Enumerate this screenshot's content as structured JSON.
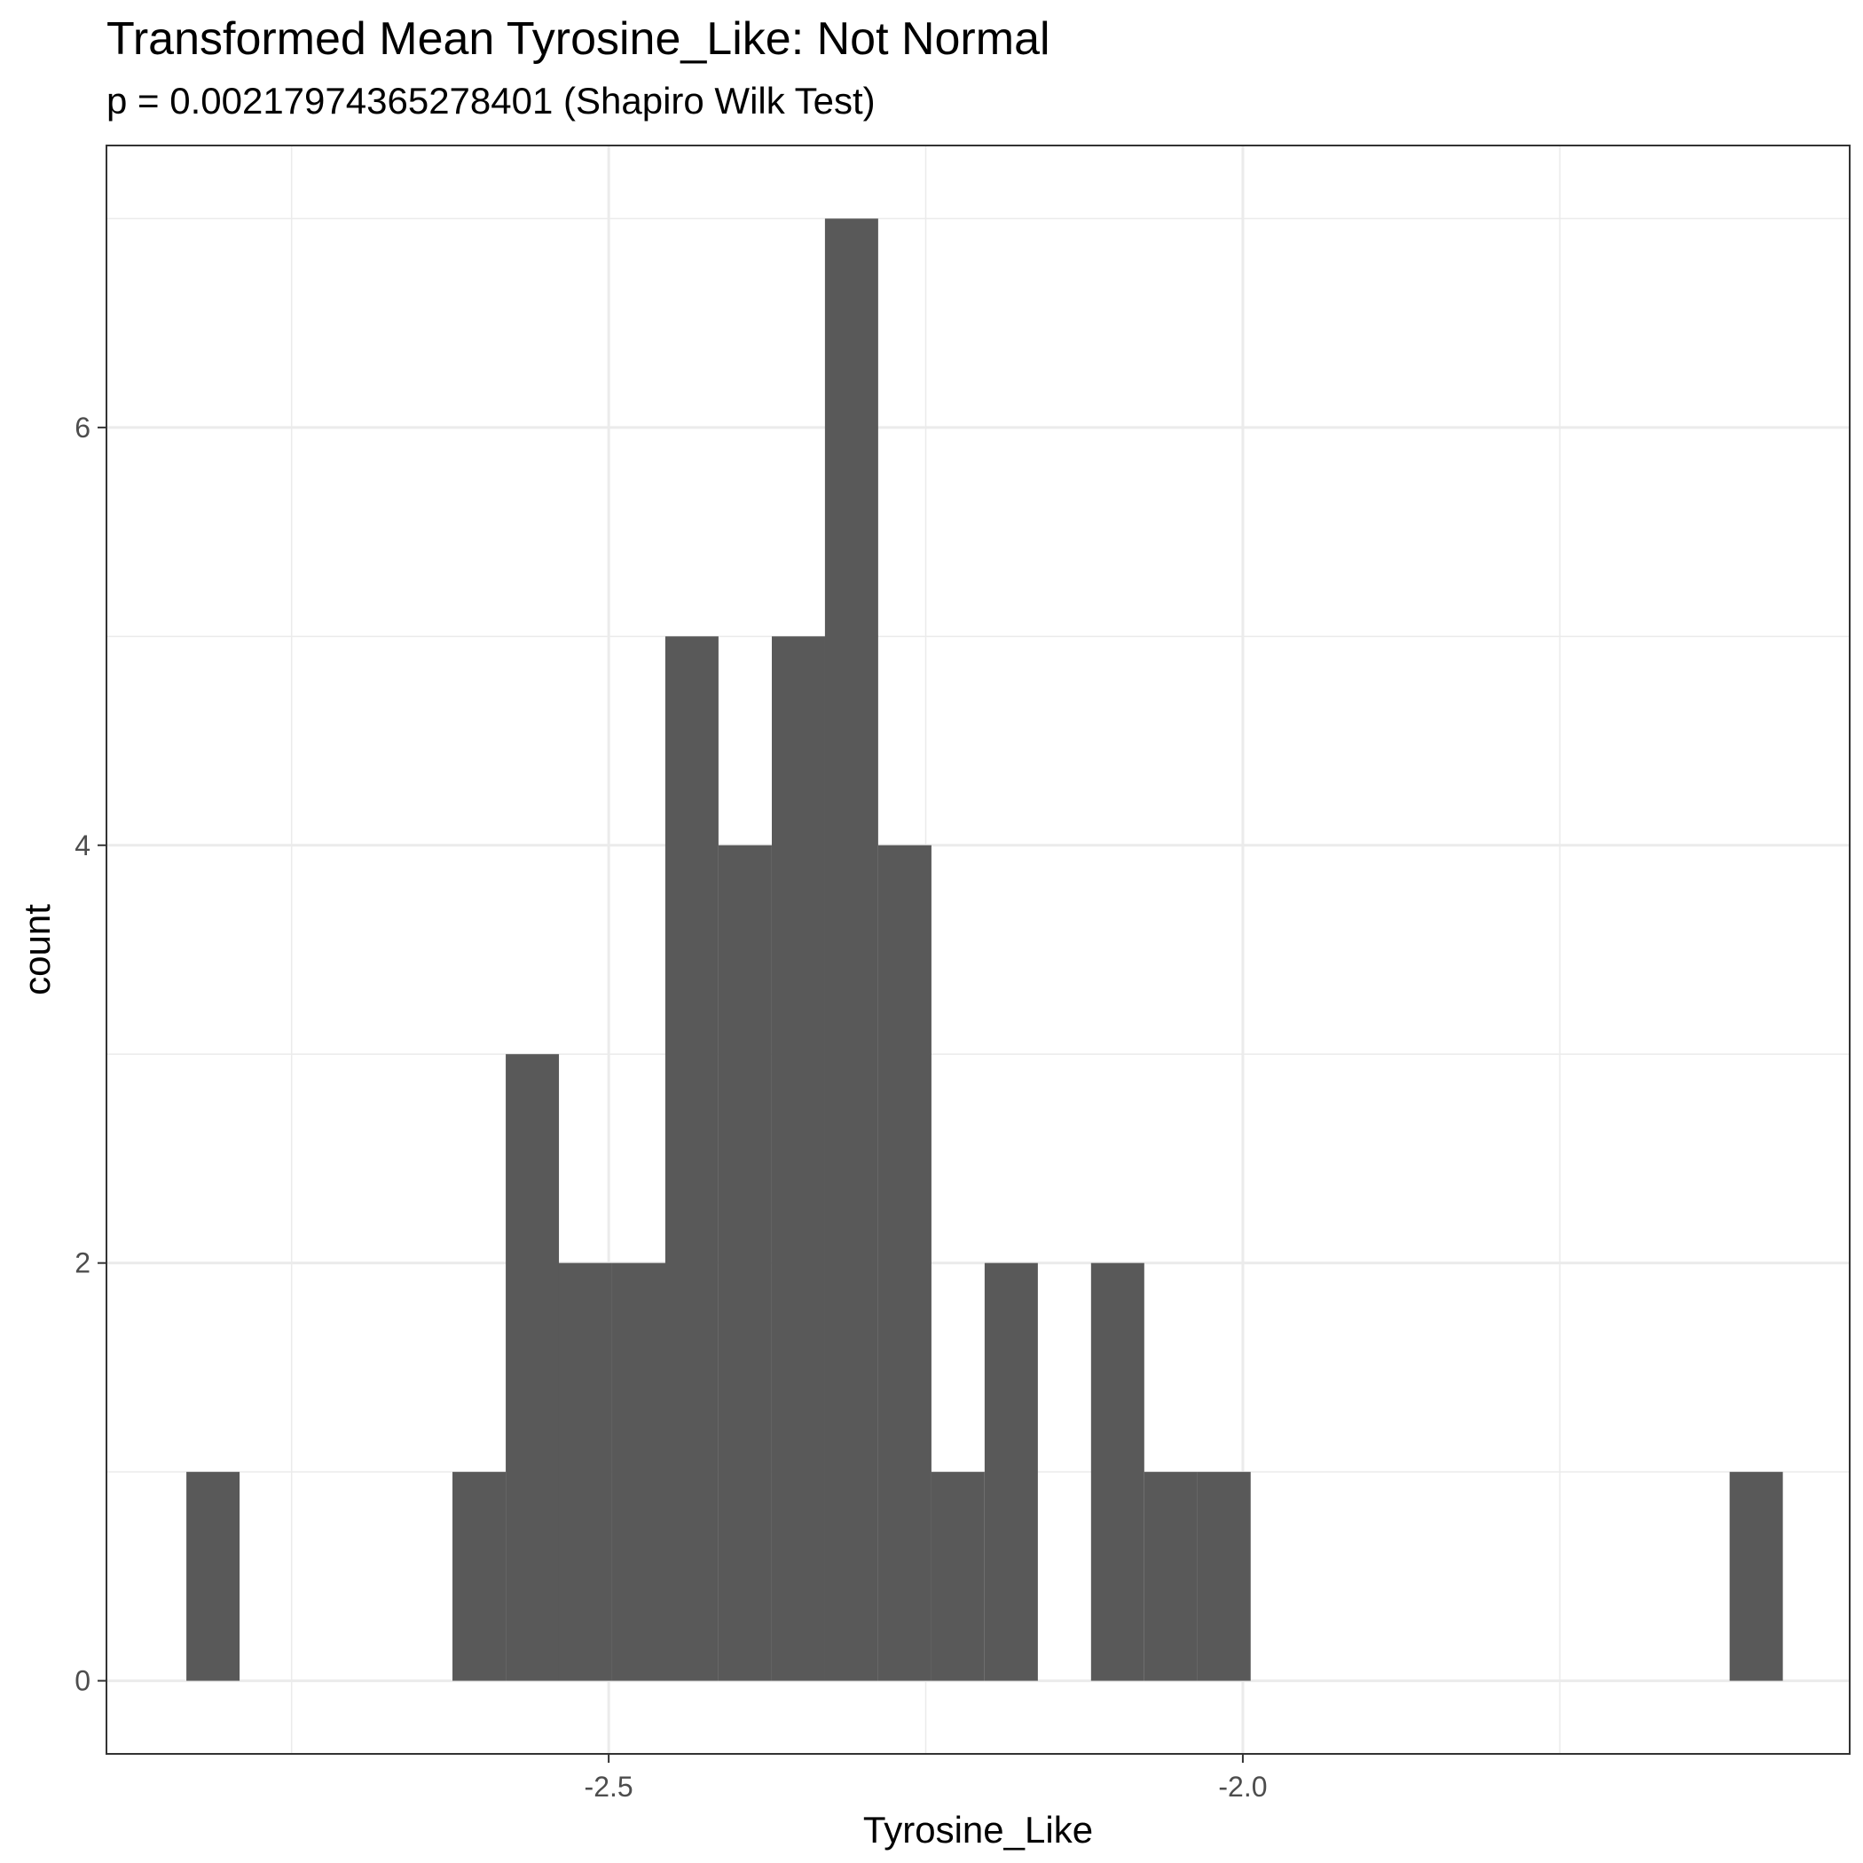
{
  "chart_data": {
    "type": "bar",
    "title": "Transformed Mean Tyrosine_Like: Not Normal",
    "subtitle": "p = 0.00217974365278401 (Shapiro Wilk Test)",
    "xlabel": "Tyrosine_Like",
    "ylabel": "count",
    "xlim": [
      -2.896,
      -1.5215
    ],
    "ylim": [
      -0.35,
      7.35
    ],
    "x_major_ticks": [
      -2.5,
      -2.0
    ],
    "x_tick_labels": [
      "-2.5",
      "-2.0"
    ],
    "x_minor_gridlines": [
      -2.75,
      -2.25,
      -1.75
    ],
    "y_major_ticks": [
      0,
      2,
      4,
      6
    ],
    "y_tick_labels": [
      "0",
      "2",
      "4",
      "6"
    ],
    "y_minor_gridlines": [
      1,
      3,
      5,
      7
    ],
    "bin_width": 0.04196,
    "bins": [
      {
        "x": -2.812,
        "count": 1
      },
      {
        "x": -2.77,
        "count": 0
      },
      {
        "x": -2.7281,
        "count": 0
      },
      {
        "x": -2.6861,
        "count": 0
      },
      {
        "x": -2.6442,
        "count": 0
      },
      {
        "x": -2.6022,
        "count": 1
      },
      {
        "x": -2.5602,
        "count": 3
      },
      {
        "x": -2.5183,
        "count": 2
      },
      {
        "x": -2.4763,
        "count": 2
      },
      {
        "x": -2.4344,
        "count": 5
      },
      {
        "x": -2.3924,
        "count": 4
      },
      {
        "x": -2.3504,
        "count": 5
      },
      {
        "x": -2.3085,
        "count": 7
      },
      {
        "x": -2.2665,
        "count": 4
      },
      {
        "x": -2.2246,
        "count": 1
      },
      {
        "x": -2.1826,
        "count": 2
      },
      {
        "x": -2.1406,
        "count": 0
      },
      {
        "x": -2.0987,
        "count": 2
      },
      {
        "x": -2.0567,
        "count": 1
      },
      {
        "x": -2.0148,
        "count": 1
      },
      {
        "x": -1.9728,
        "count": 0
      },
      {
        "x": -1.9308,
        "count": 0
      },
      {
        "x": -1.8889,
        "count": 0
      },
      {
        "x": -1.8469,
        "count": 0
      },
      {
        "x": -1.805,
        "count": 0
      },
      {
        "x": -1.763,
        "count": 0
      },
      {
        "x": -1.721,
        "count": 0
      },
      {
        "x": -1.6791,
        "count": 0
      },
      {
        "x": -1.6371,
        "count": 0
      },
      {
        "x": -1.5952,
        "count": 1
      }
    ],
    "bar_color": "#595959",
    "grid": true,
    "panel_background": "#ffffff",
    "grid_color": "#ebebeb",
    "panel_border_color": "#333333"
  }
}
